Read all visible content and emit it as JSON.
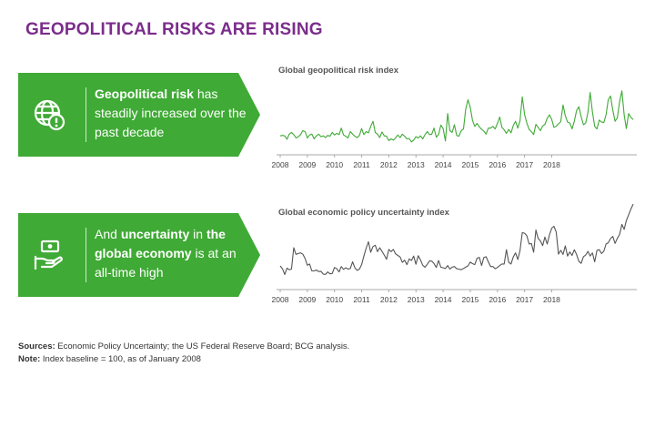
{
  "header": {
    "title": "GEOPOLITICAL RISKS ARE RISING"
  },
  "colors": {
    "title": "#7b2d8b",
    "green": "#3faa35",
    "gray_line": "#555555",
    "axis": "#aaaaaa"
  },
  "callouts": [
    {
      "icon": "globe-alert-icon",
      "bold": "Geopolitical risk",
      "rest": " has steadily increased over the past decade"
    },
    {
      "icon": "money-hand-icon",
      "pre": "And ",
      "bold1": "uncertainty",
      "mid": " in ",
      "bold2": "the global economy",
      "post": " is at an all-time high"
    }
  ],
  "footnotes": {
    "sources_label": "Sources:",
    "sources_text": " Economic Policy Uncertainty; the US Federal Reserve Board; BCG analysis.",
    "note_label": "Note:",
    "note_text": " Index baseline = 100, as of January 2008"
  },
  "chart_data": [
    {
      "type": "line",
      "title": "Global geopolitical risk index",
      "x_start": 2008,
      "x_step_years": 0.08333,
      "tick_labels": [
        "2008",
        "2009",
        "2010",
        "2011",
        "2012",
        "2013",
        "2014",
        "2015",
        "2016",
        "2017",
        "2018"
      ],
      "ylim": [
        60,
        230
      ],
      "color": "#3faa35",
      "series": [
        {
          "name": "Global geopolitical risk index",
          "values": [
            100,
            101,
            100,
            92,
            104,
            108,
            103,
            95,
            98,
            103,
            112,
            110,
            95,
            102,
            104,
            93,
            100,
            104,
            98,
            100,
            96,
            101,
            99,
            108,
            102,
            106,
            103,
            118,
            102,
            99,
            95,
            110,
            104,
            99,
            96,
            101,
            117,
            103,
            110,
            107,
            122,
            134,
            108,
            104,
            96,
            109,
            100,
            99,
            89,
            93,
            90,
            95,
            102,
            96,
            104,
            99,
            93,
            94,
            86,
            90,
            98,
            95,
            100,
            93,
            103,
            110,
            103,
            104,
            118,
            97,
            103,
            125,
            117,
            88,
            152,
            112,
            108,
            126,
            101,
            99,
            112,
            116,
            162,
            184,
            167,
            136,
            122,
            129,
            121,
            115,
            111,
            104,
            118,
            118,
            122,
            116,
            129,
            144,
            120,
            114,
            106,
            115,
            107,
            124,
            134,
            118,
            135,
            191,
            150,
            130,
            115,
            110,
            103,
            127,
            120,
            112,
            123,
            127,
            141,
            149,
            138,
            120,
            122,
            128,
            133,
            172,
            147,
            132,
            130,
            116,
            134,
            159,
            168,
            145,
            126,
            130,
            155,
            201,
            156,
            122,
            116,
            137,
            132,
            131,
            149,
            184,
            193,
            160,
            134,
            142,
            180,
            205,
            149,
            117,
            152,
            143,
            138
          ]
        }
      ]
    },
    {
      "type": "line",
      "title": "Global economic policy uncertainty index",
      "x_start": 2008,
      "x_step_years": 0.08333,
      "tick_labels": [
        "2008",
        "2009",
        "2010",
        "2011",
        "2012",
        "2013",
        "2014",
        "2015",
        "2016",
        "2017",
        "2018"
      ],
      "ylim": [
        50,
        320
      ],
      "color": "#555555",
      "series": [
        {
          "name": "Global economic policy uncertainty index",
          "values": [
            119,
            110,
            92,
            112,
            107,
            109,
            176,
            155,
            158,
            160,
            156,
            142,
            121,
            125,
            103,
            103,
            106,
            101,
            102,
            93,
            92,
            100,
            94,
            95,
            114,
            110,
            100,
            117,
            108,
            113,
            109,
            111,
            132,
            113,
            105,
            109,
            123,
            150,
            175,
            195,
            162,
            180,
            184,
            164,
            176,
            165,
            153,
            140,
            171,
            164,
            171,
            157,
            152,
            147,
            130,
            137,
            123,
            141,
            136,
            150,
            124,
            151,
            138,
            121,
            115,
            124,
            135,
            134,
            126,
            114,
            136,
            115,
            113,
            111,
            120,
            109,
            115,
            117,
            110,
            109,
            107,
            111,
            115,
            119,
            131,
            126,
            123,
            143,
            146,
            120,
            145,
            148,
            132,
            117,
            117,
            110,
            114,
            120,
            125,
            125,
            170,
            130,
            125,
            147,
            160,
            139,
            167,
            224,
            222,
            214,
            188,
            190,
            162,
            232,
            206,
            198,
            183,
            210,
            188,
            217,
            238,
            244,
            226,
            156,
            168,
            155,
            182,
            150,
            163,
            152,
            170,
            155,
            133,
            127,
            148,
            153,
            165,
            150,
            160,
            132,
            168,
            170,
            158,
            165,
            188,
            192,
            205,
            212,
            190,
            206,
            218,
            250,
            234,
            262,
            280,
            298,
            314
          ]
        }
      ]
    }
  ]
}
